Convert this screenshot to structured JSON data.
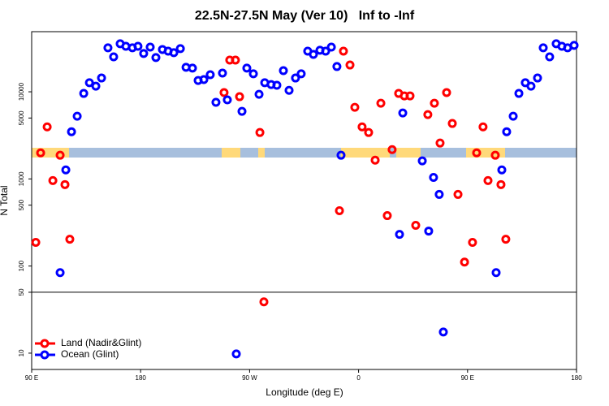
{
  "chart_data": {
    "type": "scatter",
    "title": "22.5N-27.5N May (Ver 10)   Inf to -Inf",
    "xlabel": "Longitude (deg E)",
    "ylabel": "N Total",
    "yscale": "log",
    "legend": "lower left",
    "xlim": [
      90,
      540
    ],
    "xticks": [
      {
        "value": 90,
        "label": "90 E"
      },
      180,
      {
        "value": 270,
        "label": "90 W"
      },
      {
        "value": 360,
        "label": "0"
      },
      {
        "value": 450,
        "label": "90 E"
      },
      {
        "value": 540,
        "label": "180"
      }
    ],
    "ylim": [
      6.5,
      49000
    ],
    "yticks": [
      10,
      50,
      100,
      500,
      1000,
      5000,
      10000
    ],
    "series": [
      {
        "name": "Land (Nadir&Glint)",
        "color": "#ff0000",
        "x": [
          93.4,
          97.4,
          102.8,
          107.5,
          113.5,
          117.5,
          121.5,
          248.9,
          253.6,
          258.3,
          261.7,
          278.5,
          281.8,
          344.2,
          347.5,
          352.9,
          356.9,
          362.9,
          368.3,
          373.7,
          378.4,
          383.7,
          387.7,
          393.1,
          397.8,
          402.5,
          407.2,
          417.2,
          422.6,
          427.3,
          432.7,
          437.4,
          442.1,
          447.5,
          454.1,
          457.5,
          462.8,
          466.9,
          472.9,
          477.6,
          481.6
        ],
        "values": [
          187,
          1990,
          3960,
          957,
          1870,
          861,
          203,
          9790,
          23100,
          23100,
          8790,
          3410,
          38.8,
          432,
          29300,
          20300,
          6640,
          3960,
          3410,
          1640,
          7390,
          379,
          2170,
          9580,
          8980,
          8980,
          293,
          5470,
          7390,
          2580,
          9790,
          4330,
          664,
          111,
          187,
          1990,
          3960,
          957,
          1870,
          861,
          203
        ]
      },
      {
        "name": "Ocean (Glint)",
        "color": "#0000ff",
        "x": [
          113.5,
          118.2,
          122.9,
          127.6,
          133.0,
          137.7,
          143.0,
          147.7,
          153.0,
          157.7,
          163.1,
          167.8,
          173.2,
          177.8,
          182.5,
          187.9,
          192.6,
          198.0,
          202.7,
          207.4,
          212.8,
          217.5,
          222.8,
          227.5,
          232.2,
          237.5,
          242.2,
          247.6,
          251.6,
          259.0,
          263.7,
          267.7,
          273.1,
          277.8,
          282.5,
          287.8,
          292.5,
          297.9,
          302.6,
          307.9,
          312.6,
          318.0,
          322.7,
          328.1,
          332.8,
          337.5,
          342.1,
          345.5,
          393.8,
          396.5,
          412.6,
          417.9,
          421.9,
          426.6,
          430.0,
          473.6,
          478.3,
          482.3,
          487.7,
          492.4,
          497.7,
          502.4,
          507.8,
          512.5,
          517.8,
          523.2,
          527.9,
          532.6,
          538.0
        ],
        "values": [
          84,
          1270,
          3480,
          5250,
          9580,
          12700,
          11600,
          14400,
          32000,
          25200,
          35600,
          33300,
          32000,
          33300,
          27500,
          32600,
          24700,
          30600,
          29300,
          28100,
          31300,
          19100,
          18700,
          13500,
          13800,
          15700,
          7570,
          16400,
          8070,
          9.8,
          5970,
          18700,
          16100,
          9370,
          12700,
          12100,
          11900,
          17500,
          10400,
          14400,
          16100,
          29300,
          26900,
          30000,
          29300,
          32600,
          19500,
          1870,
          231,
          5720,
          1610,
          252,
          1040,
          664,
          17.5,
          84,
          1270,
          3480,
          5250,
          9580,
          12700,
          11600,
          14400,
          32000,
          25200,
          35600,
          33300,
          32000,
          34100
        ]
      }
    ]
  }
}
